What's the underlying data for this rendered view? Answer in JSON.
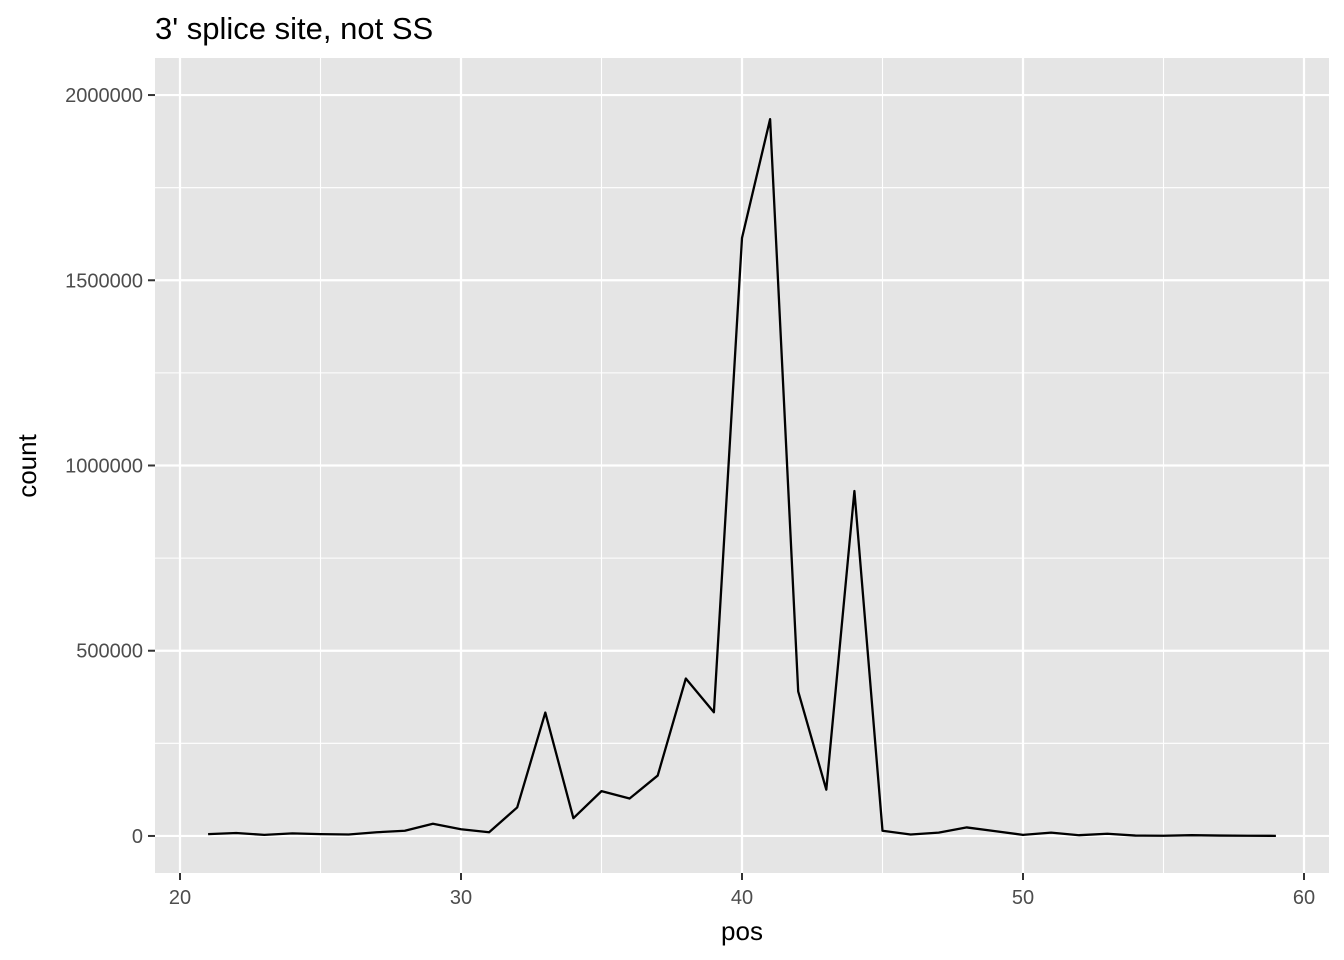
{
  "chart_data": {
    "type": "line",
    "title": "3' splice site, not SS",
    "xlabel": "pos",
    "ylabel": "count",
    "xlim": [
      20,
      60
    ],
    "ylim": [
      0,
      2000000
    ],
    "x_ticks": [
      20,
      30,
      40,
      50,
      60
    ],
    "x_tick_labels": [
      "20",
      "30",
      "40",
      "50",
      "60"
    ],
    "y_ticks": [
      0,
      500000,
      1000000,
      1500000,
      2000000
    ],
    "y_tick_labels": [
      "0",
      "500000",
      "1000000",
      "1500000",
      "2000000"
    ],
    "grid": true,
    "colors": {
      "panel_background": "#e5e5e5",
      "grid": "#ffffff",
      "line": "#000000",
      "tick_text": "#4d4d4d"
    },
    "series": [
      {
        "x": [
          21,
          22,
          23,
          24,
          25,
          26,
          27,
          28,
          29,
          30,
          31,
          32,
          33,
          34,
          35,
          36,
          37,
          38,
          39,
          40,
          41,
          42,
          43,
          44,
          45,
          46,
          47,
          48,
          49,
          50,
          51,
          52,
          53,
          54,
          55,
          56,
          57,
          58,
          59
        ],
        "values": [
          5000,
          8000,
          3000,
          7000,
          5000,
          4000,
          10000,
          14000,
          33000,
          18000,
          10000,
          77000,
          333000,
          48000,
          121000,
          101000,
          163000,
          425000,
          334000,
          1614000,
          1935000,
          390000,
          125000,
          931000,
          14000,
          4000,
          9000,
          23000,
          13000,
          3000,
          9000,
          2000,
          6000,
          1000,
          500,
          2000,
          1000,
          500,
          300
        ]
      }
    ]
  }
}
